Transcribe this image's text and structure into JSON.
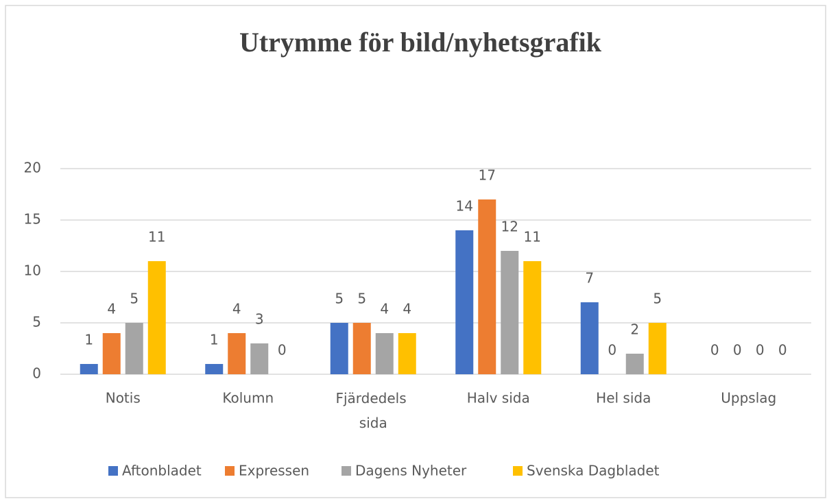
{
  "chart_data": {
    "type": "bar",
    "title": "Utrymme för bild/nyhetsgrafik",
    "categories": [
      "Notis",
      "Kolumn",
      "Fjärdedels sida",
      "Halv sida",
      "Hel sida",
      "Uppslag"
    ],
    "series": [
      {
        "name": "Aftonbladet",
        "color": "#4472c4",
        "values": [
          1,
          1,
          5,
          14,
          7,
          0
        ]
      },
      {
        "name": "Expressen",
        "color": "#ed7d31",
        "values": [
          4,
          4,
          5,
          17,
          0,
          0
        ]
      },
      {
        "name": "Dagens Nyheter",
        "color": "#a5a5a5",
        "values": [
          5,
          3,
          4,
          12,
          2,
          0
        ]
      },
      {
        "name": "Svenska Dagbladet",
        "color": "#ffc000",
        "values": [
          11,
          0,
          4,
          11,
          5,
          0
        ]
      }
    ],
    "ylim": [
      0,
      20
    ],
    "yticks": [
      0,
      5,
      10,
      15,
      20
    ],
    "grid": true,
    "legend": "bottom"
  }
}
